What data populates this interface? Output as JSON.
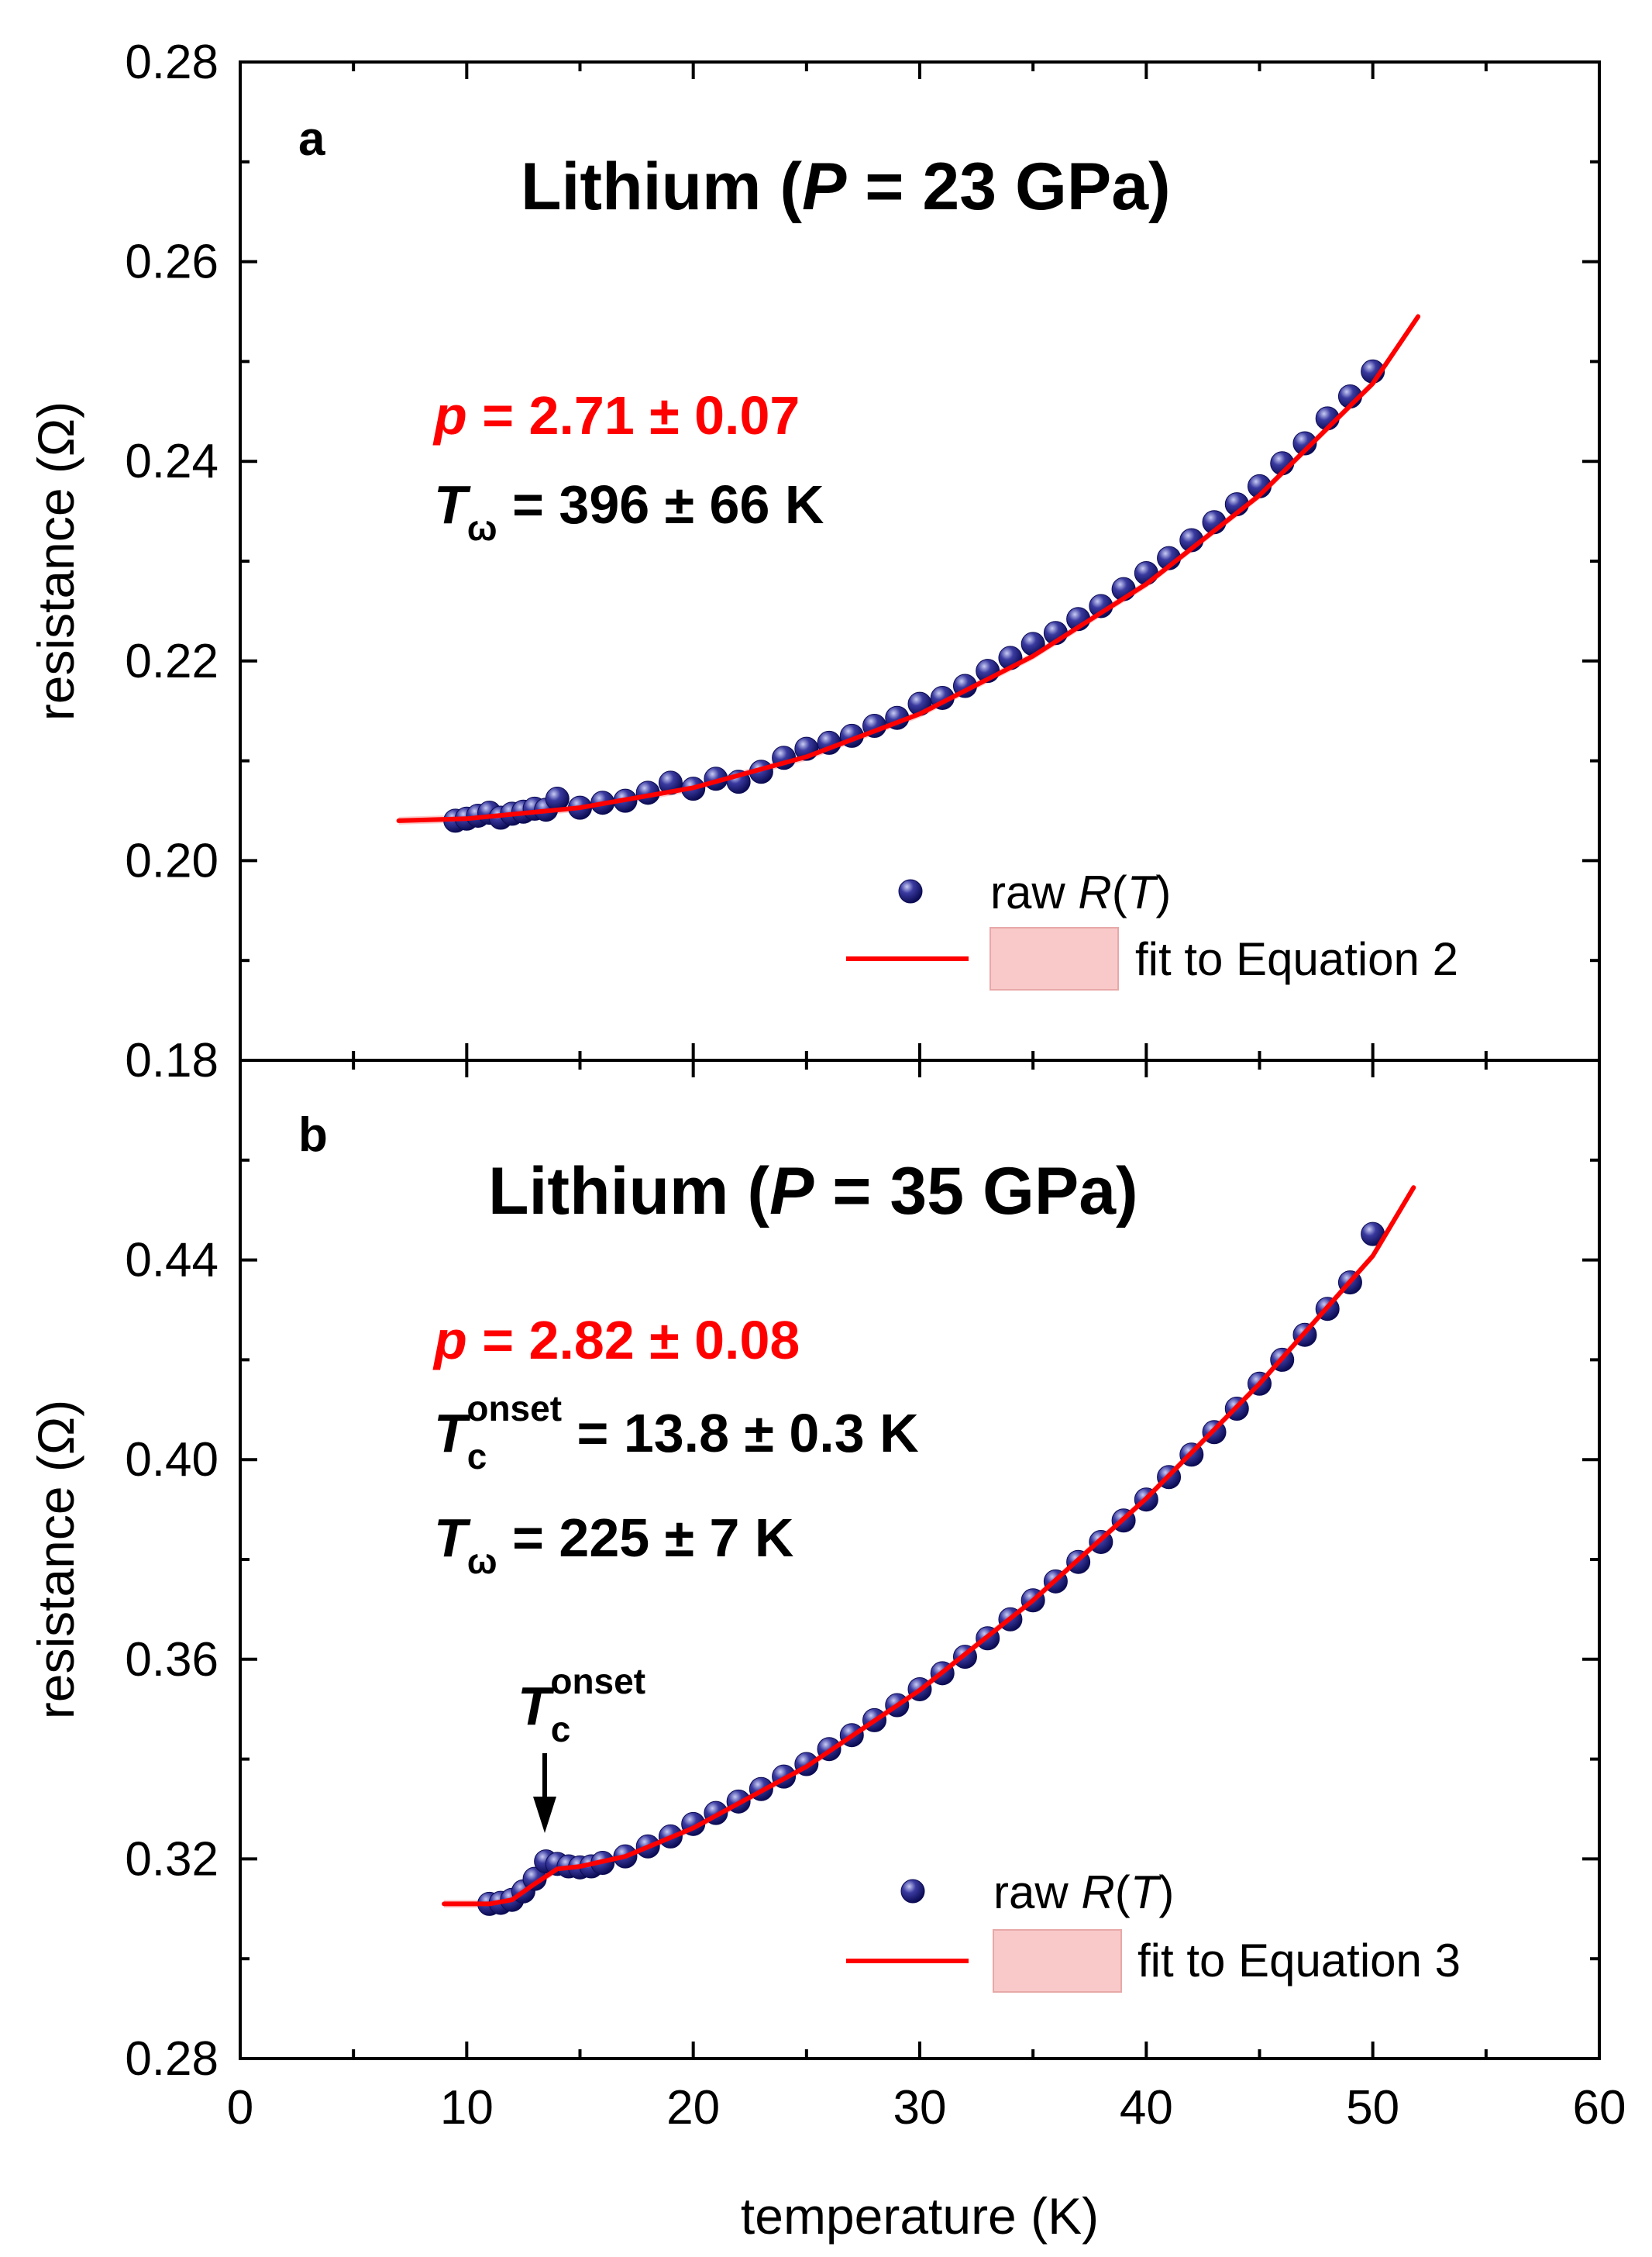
{
  "colors": {
    "fit": "#ff0000",
    "marker": "#1a1a7a",
    "marker_highlight": "#aab0e8",
    "band": "#f9c9c9",
    "axis": "#000000"
  },
  "x_axis": {
    "label": "temperature (K)",
    "range": [
      0,
      60
    ],
    "ticks": [
      "0",
      "10",
      "20",
      "30",
      "40",
      "50",
      "60"
    ]
  },
  "panels": [
    {
      "letter": "a",
      "title_prefix": "Lithium (",
      "title_italic": "P",
      "title_suffix": " = 23 GPa)",
      "ylabel": "resistance (Ω)",
      "yticks": [
        "0.18",
        "0.20",
        "0.22",
        "0.24",
        "0.26",
        "0.28"
      ],
      "p_symbol": "p",
      "p_value": " = 2.71 ± 0.07",
      "tw_symbol": "T",
      "tw_sub": "ω",
      "tw_value": " = 396 ± 66 K",
      "legend": {
        "raw_prefix": "raw ",
        "raw_italic": "R",
        "raw_open": "(",
        "raw_T": "T",
        "raw_close": ")",
        "fit_label": "fit to Equation 2"
      }
    },
    {
      "letter": "b",
      "title_prefix": "Lithium (",
      "title_italic": "P",
      "title_suffix": " = 35 GPa)",
      "ylabel": "resistance (Ω)",
      "yticks": [
        "0.28",
        "0.32",
        "0.36",
        "0.40",
        "0.44"
      ],
      "p_symbol": "p",
      "p_value": " = 2.82 ± 0.08",
      "tc_symbol": "T",
      "tc_sub": "c",
      "tc_sup": "onset",
      "tc_value": " = 13.8 ± 0.3 K",
      "tw_symbol": "T",
      "tw_sub": "ω",
      "tw_value": " = 225 ± 7 K",
      "annotation": {
        "symbol": "T",
        "sub": "c",
        "sup": "onset"
      },
      "legend": {
        "raw_prefix": "raw ",
        "raw_italic": "R",
        "raw_open": "(",
        "raw_T": "T",
        "raw_close": ")",
        "fit_label": "fit to Equation 3"
      }
    }
  ],
  "chart_data": [
    {
      "type": "scatter",
      "title": "Lithium (P = 23 GPa)",
      "xlabel": "temperature (K)",
      "ylabel": "resistance (Ω)",
      "xlim": [
        0,
        60
      ],
      "ylim": [
        0.18,
        0.28
      ],
      "fit_params": {
        "p": "2.71 ± 0.07",
        "T_omega": "396 ± 66 K"
      },
      "series": [
        {
          "name": "raw R(T)",
          "kind": "markers",
          "x": [
            9.5,
            10,
            10.5,
            11,
            11.5,
            12,
            12.5,
            13,
            13.5,
            14,
            15,
            16,
            17,
            18,
            19,
            20,
            21,
            22,
            23,
            24,
            25,
            26,
            27,
            28,
            29,
            30,
            31,
            32,
            33,
            34,
            35,
            36,
            37,
            38,
            39,
            40,
            41,
            42,
            43,
            44,
            45,
            46,
            47,
            48,
            49,
            50
          ],
          "y": [
            0.204,
            0.2042,
            0.2045,
            0.2048,
            0.2043,
            0.2047,
            0.2049,
            0.2052,
            0.2051,
            0.2062,
            0.2053,
            0.2058,
            0.206,
            0.2068,
            0.2078,
            0.2072,
            0.2082,
            0.2079,
            0.2089,
            0.2103,
            0.2112,
            0.2118,
            0.2125,
            0.2135,
            0.2143,
            0.2157,
            0.2163,
            0.2175,
            0.219,
            0.2203,
            0.2217,
            0.2228,
            0.2242,
            0.2255,
            0.2272,
            0.2288,
            0.2303,
            0.2321,
            0.2339,
            0.2357,
            0.2375,
            0.2398,
            0.2418,
            0.2443,
            0.2465,
            0.249
          ]
        },
        {
          "name": "fit to Equation 2",
          "kind": "line",
          "x": [
            7,
            10,
            15,
            20,
            25,
            30,
            35,
            40,
            45,
            50,
            52
          ],
          "y": [
            0.204,
            0.2042,
            0.2053,
            0.2073,
            0.2104,
            0.2147,
            0.2205,
            0.2277,
            0.2366,
            0.2478,
            0.2545
          ]
        }
      ]
    },
    {
      "type": "scatter",
      "title": "Lithium (P = 35 GPa)",
      "xlabel": "temperature (K)",
      "ylabel": "resistance (Ω)",
      "xlim": [
        0,
        60
      ],
      "ylim": [
        0.28,
        0.48
      ],
      "fit_params": {
        "p": "2.82 ± 0.08",
        "Tc_onset": "13.8 ± 0.3 K",
        "T_omega": "225 ± 7 K"
      },
      "annotation": {
        "text": "Tc onset",
        "x": 13.5,
        "y": 0.3195
      },
      "series": [
        {
          "name": "raw R(T)",
          "kind": "markers",
          "x": [
            11,
            11.5,
            12,
            12.5,
            13,
            13.5,
            14,
            14.5,
            15,
            15.5,
            16,
            17,
            18,
            19,
            20,
            21,
            22,
            23,
            24,
            25,
            26,
            27,
            28,
            29,
            30,
            31,
            32,
            33,
            34,
            35,
            36,
            37,
            38,
            39,
            40,
            41,
            42,
            43,
            44,
            45,
            46,
            47,
            48,
            49,
            50
          ],
          "y": [
            0.311,
            0.3112,
            0.3118,
            0.3135,
            0.316,
            0.3195,
            0.319,
            0.3185,
            0.3183,
            0.3185,
            0.3192,
            0.3205,
            0.3225,
            0.3245,
            0.327,
            0.3292,
            0.3315,
            0.334,
            0.3365,
            0.339,
            0.342,
            0.3448,
            0.3478,
            0.3508,
            0.354,
            0.3572,
            0.3605,
            0.3642,
            0.368,
            0.3718,
            0.3756,
            0.3795,
            0.3835,
            0.3878,
            0.392,
            0.3965,
            0.401,
            0.4055,
            0.4102,
            0.4152,
            0.42,
            0.425,
            0.4302,
            0.4355,
            0.4452
          ]
        },
        {
          "name": "fit to Equation 3",
          "kind": "line",
          "x": [
            9,
            11,
            12,
            13,
            14,
            15,
            17,
            20,
            25,
            30,
            35,
            40,
            45,
            50,
            51.8
          ],
          "y": [
            0.311,
            0.311,
            0.3118,
            0.315,
            0.318,
            0.3185,
            0.3205,
            0.3262,
            0.3385,
            0.3538,
            0.3718,
            0.3922,
            0.4152,
            0.4408,
            0.4545
          ]
        }
      ]
    }
  ]
}
